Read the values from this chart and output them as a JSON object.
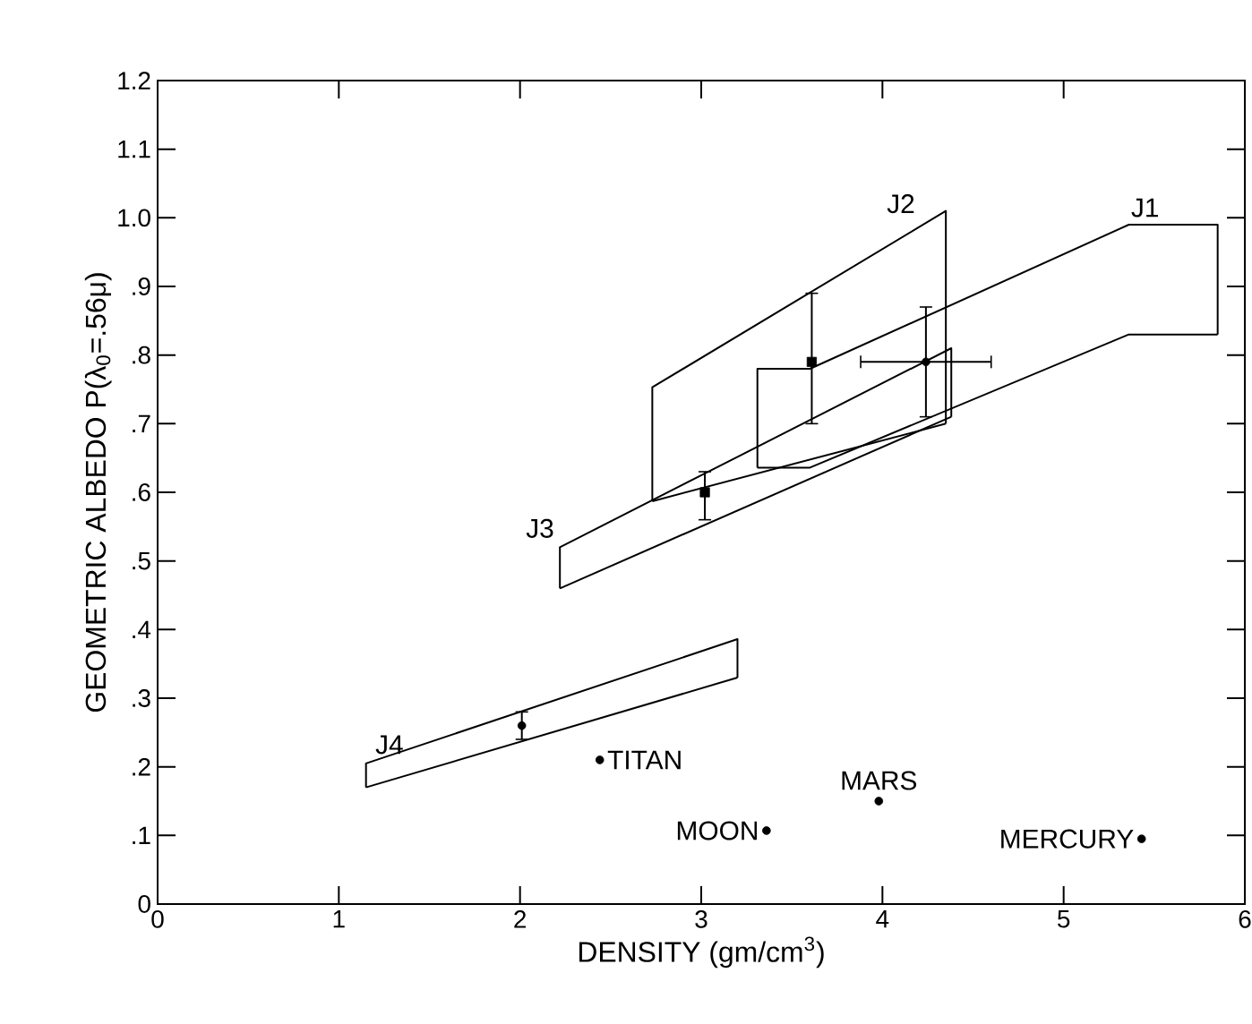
{
  "chart_data": {
    "type": "line",
    "xlabel": "DENSITY (gm/cm$^{3}$)",
    "ylabel": "GEOMETRIC ALBEDO P(λ$_{0}$=.56μ)",
    "xlim": [
      0,
      6
    ],
    "ylim": [
      0,
      1.2
    ],
    "xticks": [
      0,
      1,
      2,
      3,
      4,
      5,
      6
    ],
    "yticks": [
      0,
      {
        "value": 0.1,
        "label": ".1"
      },
      {
        "value": 0.2,
        "label": ".2"
      },
      {
        "value": 0.3,
        "label": ".3"
      },
      {
        "value": 0.4,
        "label": ".4"
      },
      {
        "value": 0.5,
        "label": ".5"
      },
      {
        "value": 0.6,
        "label": ".6"
      },
      {
        "value": 0.7,
        "label": ".7"
      },
      {
        "value": 0.8,
        "label": ".8"
      },
      {
        "value": 0.9,
        "label": ".9"
      },
      {
        "value": 1.0,
        "label": "1.0"
      },
      {
        "value": 1.1,
        "label": "1.1"
      },
      {
        "value": 1.2,
        "label": "1.2"
      }
    ],
    "line_style": "solid",
    "series": [
      {
        "name": "J1",
        "color": "#000000",
        "x": [
          3.31,
          3.31,
          3.6,
          5.36,
          5.85,
          5.85
        ],
        "values": [
          0.636,
          0.78,
          0.78,
          0.99,
          0.99,
          0.83
        ]
      },
      {
        "color": "#000000",
        "x": [
          3.31,
          3.6,
          5.36,
          5.85
        ],
        "values": [
          0.636,
          0.636,
          0.83,
          0.83
        ]
      },
      {
        "name": "J2",
        "color": "#000000",
        "x": [
          2.73,
          2.73,
          4.35,
          4.35
        ],
        "values": [
          0.587,
          0.753,
          1.01,
          0.7
        ]
      },
      {
        "color": "#000000",
        "x": [
          2.73,
          4.35
        ],
        "values": [
          0.587,
          0.7
        ]
      },
      {
        "name": "J3",
        "color": "#000000",
        "x": [
          2.22,
          2.22,
          4.38,
          4.38
        ],
        "values": [
          0.46,
          0.52,
          0.81,
          0.71
        ]
      },
      {
        "color": "#000000",
        "x": [
          2.22,
          4.38
        ],
        "values": [
          0.46,
          0.71
        ]
      },
      {
        "name": "J4",
        "color": "#000000",
        "x": [
          1.15,
          1.15,
          3.2,
          3.2
        ],
        "values": [
          0.17,
          0.205,
          0.386,
          0.33
        ]
      },
      {
        "color": "#000000",
        "x": [
          1.15,
          3.2
        ],
        "values": [
          0.17,
          0.33
        ]
      },
      {
        "type": "scatter",
        "marker": "square",
        "color": "#000000",
        "x": [
          3.02,
          3.61
        ],
        "values": [
          0.6,
          0.79
        ],
        "errors": [
          [
            0.56,
            0.63
          ],
          [
            0.7,
            0.89
          ]
        ]
      },
      {
        "type": "scatter",
        "marker": "circle",
        "color": "#000000",
        "x": [
          4.24,
          2.01
        ],
        "values": [
          0.79,
          0.26
        ],
        "errors": [
          [
            0.71,
            0.87
          ],
          [
            0.24,
            0.28
          ]
        ],
        "xerrors": [
          [
            3.88,
            4.6
          ],
          null
        ]
      },
      {
        "type": "scatter",
        "marker": "circle",
        "color": "#000000",
        "x": [
          2.44,
          3.36,
          3.98,
          5.43
        ],
        "values": [
          0.21,
          0.107,
          0.15,
          0.095
        ]
      }
    ],
    "annotations": [
      {
        "text": "TITAN",
        "x": 2.44,
        "y": 0.21
      },
      {
        "text": "MOON",
        "x": 3.36,
        "y": 0.107
      },
      {
        "text": "MARS",
        "x": 3.98,
        "y": 0.15
      },
      {
        "text": "MERCURY",
        "x": 5.43,
        "y": 0.095
      }
    ]
  }
}
